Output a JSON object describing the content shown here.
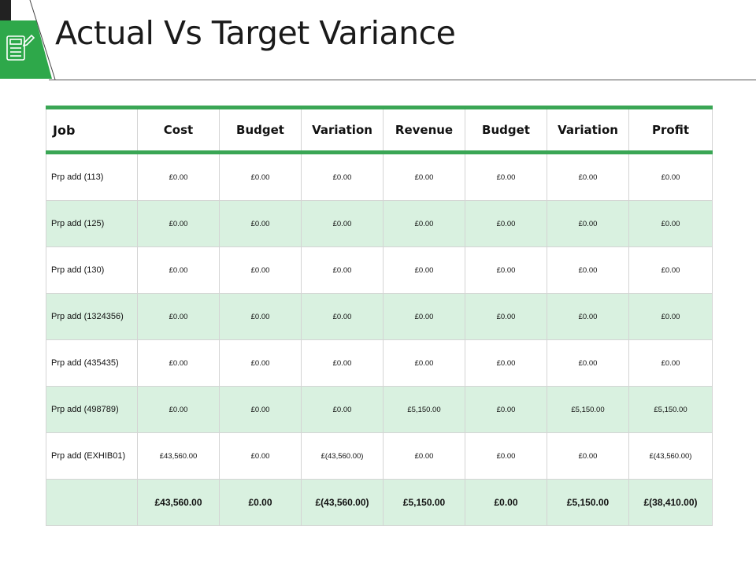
{
  "slide": {
    "title": "Actual Vs Target Variance"
  },
  "table": {
    "headers": [
      "Job",
      "Cost",
      "Budget",
      "Variation",
      "Revenue",
      "Budget",
      "Variation",
      "Profit"
    ],
    "rows": [
      {
        "job": "Prp add (113)",
        "values": [
          "£0.00",
          "£0.00",
          "£0.00",
          "£0.00",
          "£0.00",
          "£0.00",
          "£0.00"
        ]
      },
      {
        "job": "Prp add (125)",
        "values": [
          "£0.00",
          "£0.00",
          "£0.00",
          "£0.00",
          "£0.00",
          "£0.00",
          "£0.00"
        ]
      },
      {
        "job": "Prp add (130)",
        "values": [
          "£0.00",
          "£0.00",
          "£0.00",
          "£0.00",
          "£0.00",
          "£0.00",
          "£0.00"
        ]
      },
      {
        "job": "Prp add (1324356)",
        "values": [
          "£0.00",
          "£0.00",
          "£0.00",
          "£0.00",
          "£0.00",
          "£0.00",
          "£0.00"
        ]
      },
      {
        "job": "Prp add (435435)",
        "values": [
          "£0.00",
          "£0.00",
          "£0.00",
          "£0.00",
          "£0.00",
          "£0.00",
          "£0.00"
        ]
      },
      {
        "job": "Prp add (498789)",
        "values": [
          "£0.00",
          "£0.00",
          "£0.00",
          "£5,150.00",
          "£0.00",
          "£5,150.00",
          "£5,150.00"
        ]
      },
      {
        "job": "Prp add (EXHIB01)",
        "values": [
          "£43,560.00",
          "£0.00",
          "£(43,560.00)",
          "£0.00",
          "£0.00",
          "£0.00",
          "£(43,560.00)"
        ]
      }
    ],
    "totals": [
      "£43,560.00",
      "£0.00",
      "£(43,560.00)",
      "£5,150.00",
      "£0.00",
      "£5,150.00",
      "£(38,410.00)"
    ]
  },
  "colors": {
    "accent": "#3aa655",
    "row_alt": "#d9f1e0",
    "icon_green": "#2ea84a"
  },
  "icons": [
    "calculator-document-icon"
  ]
}
